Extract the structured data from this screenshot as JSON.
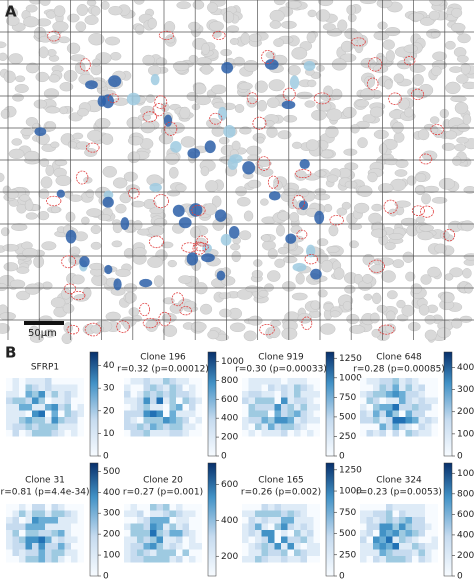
{
  "panel_a": {
    "label": "A",
    "scale_bar": "50µm"
  },
  "panel_b": {
    "label": "B",
    "heatmaps": [
      {
        "title": "SFRP1",
        "range": [
          0,
          46
        ],
        "ticks": [
          0,
          10,
          20,
          30,
          40
        ]
      },
      {
        "title": "Clone 196",
        "stat": "r=0.32 (p=0.00012)",
        "range": [
          0,
          1100
        ],
        "ticks": [
          0,
          200,
          400,
          600,
          800,
          1000
        ]
      },
      {
        "title": "Clone 919",
        "stat": "r=0.30 (p=0.00033)",
        "range": [
          0,
          1330
        ],
        "ticks": [
          0,
          250,
          500,
          750,
          1000,
          1250
        ]
      },
      {
        "title": "Clone 648",
        "stat": "r=0.28 (p=0.00085)",
        "range": [
          0,
          470
        ],
        "ticks": [
          0,
          100,
          200,
          300,
          400
        ]
      },
      {
        "title": "Clone 31",
        "stat": "r=0.81 (p=4.4e-34)",
        "range": [
          0,
          540
        ],
        "ticks": [
          0,
          100,
          200,
          300,
          400,
          500
        ]
      },
      {
        "title": "Clone 20",
        "stat": "r=0.27 (p=0.001)",
        "range": [
          90,
          720
        ],
        "ticks": [
          200,
          400,
          600
        ]
      },
      {
        "title": "Clone 165",
        "stat": "r=0.26 (p=0.002)",
        "range": [
          0,
          1330
        ],
        "ticks": [
          0,
          250,
          500,
          750,
          1000,
          1250
        ]
      },
      {
        "title": "Clone 324",
        "stat": "r=0.23 (p=0.0053)",
        "range": [
          0,
          1100
        ],
        "ticks": [
          0,
          200,
          400,
          600,
          800,
          1000
        ]
      }
    ]
  }
}
